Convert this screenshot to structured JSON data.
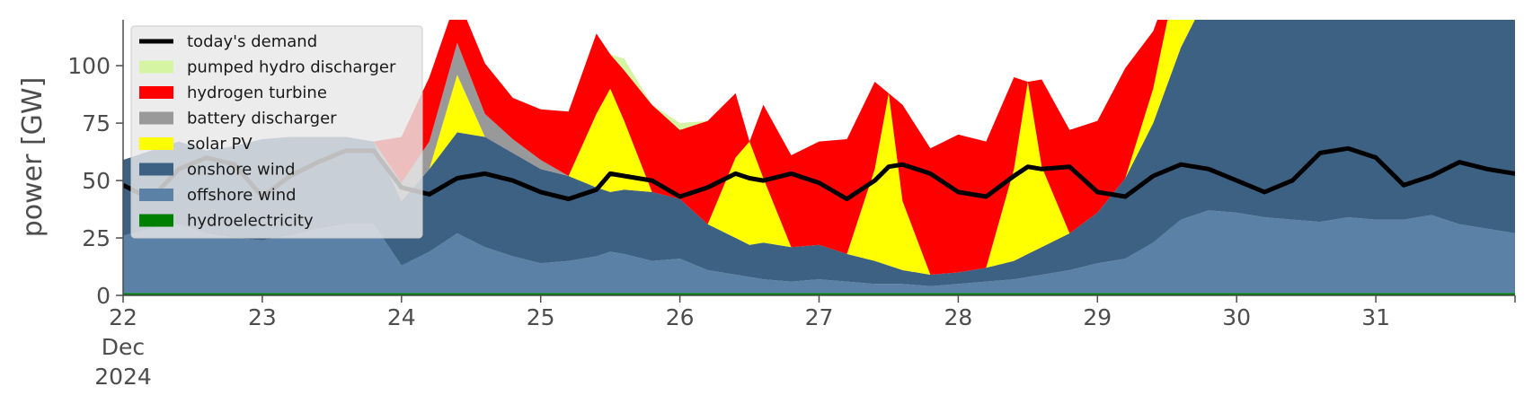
{
  "chart_data": {
    "type": "area",
    "ylabel": "power [GW]",
    "xlabel": "",
    "ylim": [
      0,
      120
    ],
    "xlim_days": [
      0,
      10
    ],
    "y_ticks": [
      0,
      25,
      50,
      75,
      100
    ],
    "x_ticks": [
      {
        "day": 0,
        "label": "22",
        "sub": [
          "Dec",
          "2024"
        ]
      },
      {
        "day": 1,
        "label": "23"
      },
      {
        "day": 2,
        "label": "24"
      },
      {
        "day": 3,
        "label": "25"
      },
      {
        "day": 4,
        "label": "26"
      },
      {
        "day": 5,
        "label": "27"
      },
      {
        "day": 6,
        "label": "28"
      },
      {
        "day": 7,
        "label": "29"
      },
      {
        "day": 8,
        "label": "30"
      },
      {
        "day": 9,
        "label": "31"
      }
    ],
    "grid": false,
    "legend_position": "upper-left",
    "x": [
      0,
      0.2,
      0.4,
      0.6,
      0.8,
      1.0,
      1.2,
      1.4,
      1.6,
      1.8,
      2.0,
      2.2,
      2.4,
      2.6,
      2.8,
      3.0,
      3.2,
      3.4,
      3.5,
      3.6,
      3.8,
      4.0,
      4.2,
      4.4,
      4.5,
      4.6,
      4.8,
      5.0,
      5.2,
      5.4,
      5.5,
      5.6,
      5.8,
      6.0,
      6.2,
      6.4,
      6.5,
      6.6,
      6.8,
      7.0,
      7.2,
      7.4,
      7.6,
      7.8,
      8.0,
      8.2,
      8.4,
      8.6,
      8.8,
      9.0,
      9.2,
      9.4,
      9.6,
      9.8,
      10.0
    ],
    "series": [
      {
        "name": "hydroelectricity",
        "color": "#008000",
        "values": [
          1,
          1,
          1,
          1,
          1,
          1,
          1,
          1,
          1,
          1,
          1,
          1,
          1,
          1,
          1,
          1,
          1,
          1,
          1,
          1,
          1,
          1,
          1,
          1,
          1,
          1,
          1,
          1,
          1,
          1,
          1,
          1,
          1,
          1,
          1,
          1,
          1,
          1,
          1,
          1,
          1,
          1,
          1,
          1,
          1,
          1,
          1,
          1,
          1,
          1,
          1,
          1,
          1,
          1,
          1
        ]
      },
      {
        "name": "offshore wind",
        "color": "#5b81a6",
        "values": [
          25,
          28,
          30,
          26,
          24,
          23,
          25,
          28,
          30,
          30,
          12,
          18,
          26,
          20,
          16,
          13,
          14,
          16,
          18,
          17,
          14,
          15,
          10,
          8,
          7,
          6,
          5,
          6,
          5,
          4,
          4,
          4,
          3,
          4,
          5,
          6,
          7,
          8,
          10,
          13,
          15,
          22,
          32,
          36,
          35,
          33,
          32,
          31,
          33,
          32,
          32,
          34,
          30,
          28,
          26
        ]
      },
      {
        "name": "onshore wind",
        "color": "#3c6183",
        "values": [
          33,
          34,
          36,
          36,
          40,
          44,
          43,
          40,
          38,
          36,
          28,
          36,
          44,
          48,
          45,
          41,
          37,
          30,
          26,
          28,
          30,
          26,
          20,
          16,
          14,
          16,
          15,
          15,
          12,
          10,
          8,
          6,
          5,
          5,
          6,
          8,
          10,
          12,
          16,
          22,
          35,
          52,
          75,
          95,
          104,
          108,
          110,
          107,
          111,
          117,
          118,
          108,
          98,
          110,
          120
        ]
      },
      {
        "name": "solar PV",
        "color": "#ffff00",
        "values": [
          0,
          0,
          0,
          0,
          0,
          0,
          0,
          0,
          0,
          0,
          0,
          0,
          25,
          0,
          0,
          0,
          0,
          32,
          45,
          30,
          0,
          0,
          0,
          35,
          45,
          28,
          0,
          0,
          0,
          40,
          75,
          30,
          0,
          0,
          0,
          40,
          75,
          35,
          0,
          0,
          0,
          15,
          40,
          0,
          0,
          0,
          20,
          60,
          30,
          0,
          0,
          0,
          80,
          45,
          0
        ]
      },
      {
        "name": "battery discharger",
        "color": "#999999",
        "values": [
          0,
          0,
          0,
          0,
          0,
          0,
          0,
          0,
          0,
          0,
          8,
          12,
          14,
          10,
          6,
          4,
          0,
          0,
          0,
          0,
          0,
          0,
          0,
          0,
          0,
          0,
          0,
          0,
          0,
          0,
          0,
          0,
          0,
          0,
          0,
          0,
          0,
          0,
          0,
          0,
          0,
          0,
          0,
          0,
          0,
          0,
          0,
          0,
          0,
          0,
          0,
          0,
          0,
          0,
          0
        ]
      },
      {
        "name": "hydrogen turbine",
        "color": "#ff0000",
        "values": [
          0,
          0,
          0,
          0,
          0,
          0,
          0,
          0,
          0,
          0,
          20,
          28,
          20,
          22,
          18,
          22,
          28,
          35,
          15,
          22,
          38,
          30,
          45,
          28,
          0,
          32,
          40,
          45,
          50,
          38,
          0,
          42,
          55,
          60,
          55,
          40,
          0,
          38,
          45,
          40,
          48,
          25,
          0,
          0,
          0,
          0,
          0,
          0,
          0,
          0,
          0,
          0,
          0,
          0,
          0
        ]
      },
      {
        "name": "pumped hydro discharger",
        "color": "#d5f5a3",
        "values": [
          0,
          0,
          0,
          0,
          0,
          0,
          0,
          0,
          0,
          0,
          0,
          0,
          0,
          0,
          0,
          0,
          0,
          0,
          0,
          5,
          0,
          3,
          0,
          0,
          0,
          0,
          0,
          0,
          0,
          0,
          0,
          0,
          0,
          0,
          0,
          0,
          0,
          0,
          0,
          0,
          0,
          0,
          0,
          0,
          0,
          0,
          0,
          0,
          0,
          0,
          0,
          0,
          0,
          0,
          0
        ]
      },
      {
        "name": "today's demand",
        "color": "#000000",
        "line": true,
        "values": [
          48,
          42,
          55,
          60,
          57,
          43,
          52,
          58,
          63,
          63,
          47,
          44,
          51,
          53,
          50,
          45,
          42,
          46,
          53,
          52,
          50,
          43,
          47,
          53,
          51,
          50,
          53,
          49,
          42,
          50,
          56,
          57,
          53,
          45,
          43,
          52,
          56,
          55,
          56,
          45,
          43,
          52,
          57,
          55,
          50,
          45,
          50,
          62,
          64,
          60,
          48,
          52,
          58,
          55,
          53
        ]
      }
    ],
    "legend_entries": [
      "today's demand",
      "pumped hydro discharger",
      "hydrogen turbine",
      "battery discharger",
      "solar PV",
      "onshore wind",
      "offshore wind",
      "hydroelectricity"
    ]
  }
}
